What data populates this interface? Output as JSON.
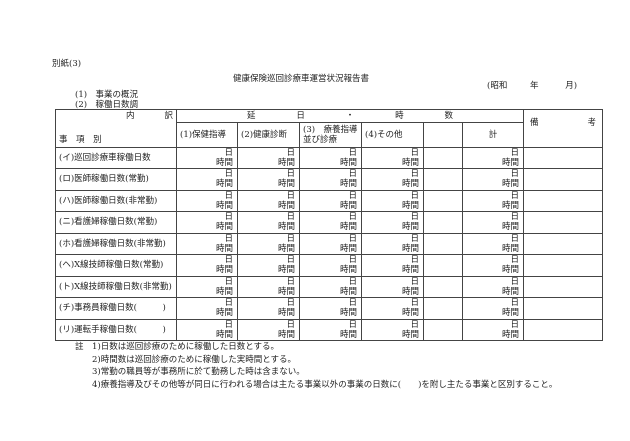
{
  "attachment_label": "別紙(3)",
  "title": "健康保険巡回診療車運営状況報告書",
  "date_label": {
    "era": "(昭和",
    "year": "年",
    "month": "月)"
  },
  "sections": [
    "(1)　事業の概況",
    "(2)　稼働日数調"
  ],
  "table": {
    "corner_top": [
      "内",
      "訳"
    ],
    "corner_bottom": [
      "事",
      "項",
      "別"
    ],
    "group_header": [
      "延",
      "日",
      "・",
      "時",
      "数"
    ],
    "columns": [
      "(1)保健指導",
      "(2)健康診断",
      "(3)　療養指導並び診療",
      "(4)その他",
      "",
      "計"
    ],
    "remarks_header": [
      "備",
      "考"
    ],
    "unit_day": "日",
    "unit_hour": "時間",
    "rows": [
      "(イ)巡回診療車稼働日数",
      "(ロ)医師稼働日数(常勤)",
      "(ハ)医師稼働日数(非常勤)",
      "(ニ)看護婦稼働日数(常勤)",
      "(ホ)看護婦稼働日数(非常勤)",
      "(ヘ)X線技師稼働日数(常勤)",
      "(ト)X線技師稼働日数(非常勤)",
      "(チ)事務員稼働日数(　　　)",
      "(リ)運転手稼働日数(　　　)"
    ]
  },
  "notes": {
    "label": "註",
    "items": [
      "1)日数は巡回診療のために稼働した日数とする。",
      "2)時間数は巡回診療のために稼働した実時間とする。",
      "3)常勤の職員等が事務所に於て勤務した時は含まない。",
      "4)療養指導及びその他等が同日に行われる場合は主たる事業以外の事業の日数に(　　)を附し主たる事業と区別すること。"
    ]
  }
}
